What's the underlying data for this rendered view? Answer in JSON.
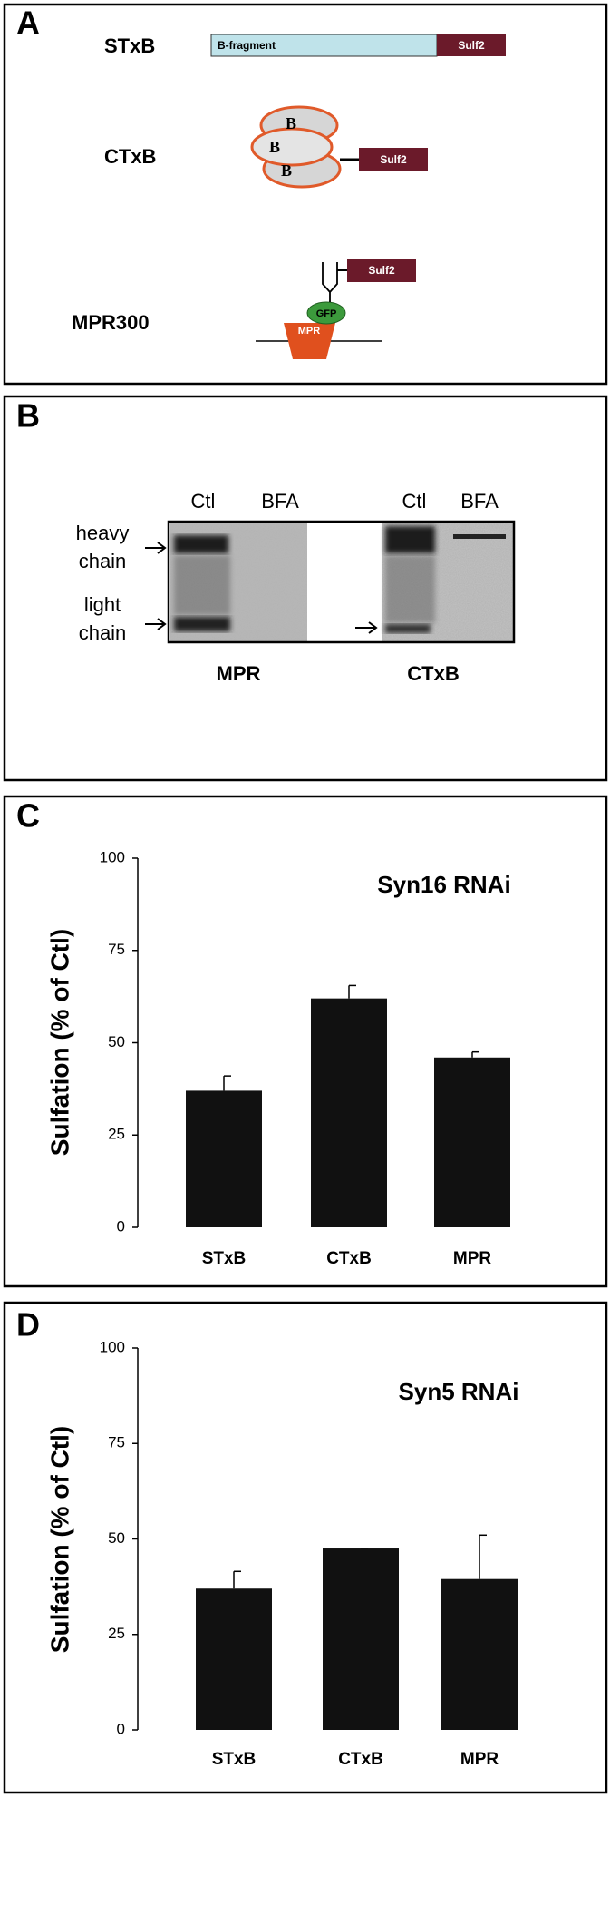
{
  "panel_a": {
    "label": "A",
    "stxb": {
      "name": "STxB",
      "fragment": "B-fragment",
      "tag": "Sulf2"
    },
    "ctxb": {
      "name": "CTxB",
      "subunits": [
        "B",
        "B",
        "B"
      ],
      "tag": "Sulf2"
    },
    "mpr300": {
      "name": "MPR300",
      "gfp": "GFP",
      "receptor": "MPR",
      "tag": "Sulf2"
    }
  },
  "panel_b": {
    "label": "B",
    "lanes": [
      "Ctl",
      "BFA",
      "Ctl",
      "BFA"
    ],
    "bands": [
      [
        "heavy",
        "chain"
      ],
      [
        "light",
        "chain"
      ]
    ],
    "groups": [
      "MPR",
      "CTxB"
    ]
  },
  "chart_data": [
    {
      "type": "bar",
      "panel_label": "C",
      "title": "Syn16 RNAi",
      "ylabel": "Sulfation (% of Ctl)",
      "categories": [
        "STxB",
        "CTxB",
        "MPR"
      ],
      "values": [
        37,
        62,
        46
      ],
      "errors": [
        4,
        3.5,
        1.5
      ],
      "color": "#111111",
      "ylim": [
        0,
        100
      ],
      "yticks": [
        0,
        25,
        50,
        75,
        100
      ]
    },
    {
      "type": "bar",
      "panel_label": "D",
      "title": "Syn5 RNAi",
      "ylabel": "Sulfation (% of Ctl)",
      "categories": [
        "STxB",
        "CTxB",
        "MPR"
      ],
      "values": [
        37,
        47.5,
        39.5
      ],
      "errors": [
        4.5,
        0,
        11.5
      ],
      "color": "#111111",
      "ylim": [
        0,
        100
      ],
      "yticks": [
        0,
        25,
        50,
        75,
        100
      ]
    }
  ]
}
